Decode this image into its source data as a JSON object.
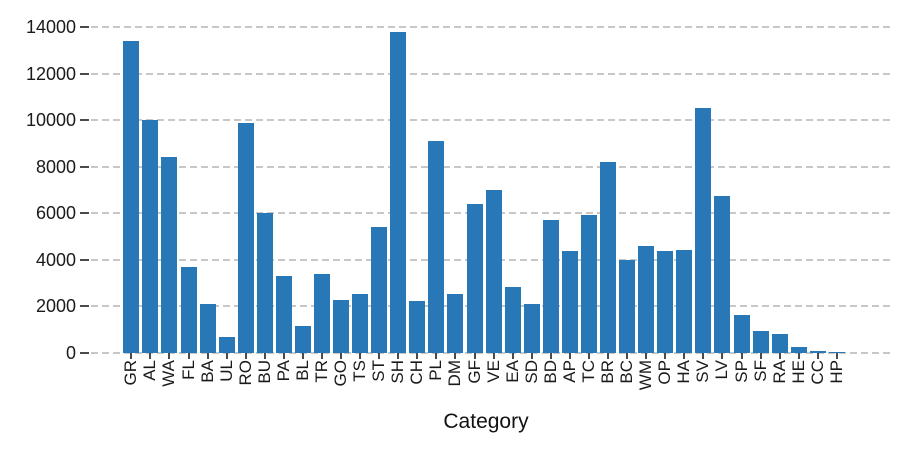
{
  "chart_data": {
    "type": "bar",
    "title": "",
    "xlabel": "Category",
    "ylabel": "",
    "categories": [
      "GR",
      "AL",
      "WA",
      "FL",
      "BA",
      "UL",
      "RO",
      "BU",
      "PA",
      "BL",
      "TR",
      "GO",
      "TS",
      "ST",
      "SH",
      "CH",
      "PL",
      "DM",
      "GF",
      "VE",
      "EA",
      "SD",
      "BD",
      "AP",
      "TC",
      "BR",
      "BC",
      "WM",
      "OP",
      "HA",
      "SV",
      "LV",
      "SP",
      "SF",
      "RA",
      "HE",
      "CC",
      "HP"
    ],
    "values": [
      13400,
      10000,
      8450,
      3700,
      2100,
      700,
      9900,
      6000,
      3300,
      1150,
      3400,
      2300,
      2550,
      5400,
      13800,
      2250,
      9100,
      2550,
      6400,
      7000,
      2850,
      2100,
      5700,
      4400,
      5950,
      8200,
      4000,
      4600,
      4400,
      4450,
      10550,
      6750,
      1650,
      950,
      800,
      250,
      100,
      50
    ],
    "ylim": [
      0,
      14300
    ],
    "yticks": [
      0,
      2000,
      4000,
      6000,
      8000,
      10000,
      12000,
      14000
    ],
    "grid": "horizontal-dashed",
    "legend_position": "none",
    "bar_color": "#2878b8",
    "grid_color": "#c7c7c7",
    "tick_color": "#4a4a4a",
    "text_color": "#1a1a1a"
  }
}
